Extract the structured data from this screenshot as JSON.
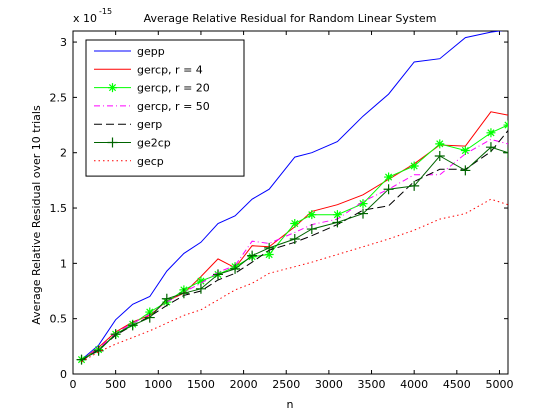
{
  "chart_data": {
    "type": "line",
    "title": "Average Relative Residual for Random Linear System",
    "xlabel": "n",
    "ylabel": "Average Relative Residual over 10 trials",
    "y_exponent_label": "x 10",
    "y_exponent_power": "-15",
    "xlim": [
      0,
      5100
    ],
    "ylim": [
      0,
      3.1
    ],
    "xticks": [
      "0",
      "500",
      "1000",
      "1500",
      "2000",
      "2500",
      "3000",
      "3500",
      "4000",
      "4500",
      "5000"
    ],
    "xtick_values": [
      0,
      500,
      1000,
      1500,
      2000,
      2500,
      3000,
      3500,
      4000,
      4500,
      5000
    ],
    "yticks": [
      "0",
      "0.5",
      "1",
      "1.5",
      "2",
      "2.5",
      "3"
    ],
    "ytick_values": [
      0,
      0.5,
      1,
      1.5,
      2,
      2.5,
      3
    ],
    "grid": false,
    "legend_position": "top-left",
    "series": [
      {
        "name": "gepp",
        "color": "#0000ff",
        "dash": "",
        "marker": "",
        "x": [
          100,
          300,
          500,
          700,
          900,
          1100,
          1300,
          1500,
          1700,
          1900,
          2100,
          2300,
          2600,
          2800,
          3100,
          3400,
          3700,
          4000,
          4300,
          4600,
          4900,
          5100
        ],
        "y": [
          0.13,
          0.26,
          0.49,
          0.63,
          0.7,
          0.93,
          1.09,
          1.19,
          1.36,
          1.43,
          1.58,
          1.67,
          1.96,
          2.0,
          2.1,
          2.33,
          2.53,
          2.82,
          2.85,
          3.04,
          3.09,
          3.11
        ]
      },
      {
        "name": "gercp, r = 4",
        "color": "#ff0000",
        "dash": "",
        "marker": "",
        "x": [
          100,
          300,
          500,
          700,
          900,
          1100,
          1300,
          1500,
          1700,
          1900,
          2100,
          2300,
          2600,
          2800,
          3100,
          3400,
          3700,
          4000,
          4300,
          4600,
          4900,
          5100
        ],
        "y": [
          0.12,
          0.24,
          0.38,
          0.47,
          0.53,
          0.66,
          0.73,
          0.88,
          1.04,
          0.96,
          1.16,
          1.15,
          1.33,
          1.47,
          1.53,
          1.62,
          1.76,
          1.9,
          2.07,
          2.06,
          2.37,
          2.34
        ]
      },
      {
        "name": "gercp, r = 20",
        "color": "#00ff00",
        "dash": "",
        "marker": "star",
        "x": [
          100,
          300,
          500,
          700,
          900,
          1100,
          1300,
          1500,
          1700,
          1900,
          2100,
          2300,
          2600,
          2800,
          3100,
          3400,
          3700,
          4000,
          4300,
          4600,
          4900,
          5100
        ],
        "y": [
          0.13,
          0.22,
          0.36,
          0.45,
          0.56,
          0.65,
          0.76,
          0.84,
          0.9,
          0.97,
          1.06,
          1.08,
          1.36,
          1.44,
          1.44,
          1.54,
          1.78,
          1.88,
          2.08,
          2.02,
          2.18,
          2.25
        ]
      },
      {
        "name": "gercp, r = 50",
        "color": "#ff00ff",
        "dash": "6,3,1,3",
        "marker": "",
        "x": [
          100,
          300,
          500,
          700,
          900,
          1100,
          1300,
          1500,
          1700,
          1900,
          2100,
          2300,
          2600,
          2800,
          3100,
          3400,
          3700,
          4000,
          4300,
          4600,
          4900,
          5100
        ],
        "y": [
          0.12,
          0.23,
          0.37,
          0.46,
          0.54,
          0.65,
          0.74,
          0.82,
          0.92,
          0.98,
          1.2,
          1.18,
          1.28,
          1.35,
          1.4,
          1.56,
          1.67,
          1.8,
          1.8,
          1.99,
          2.12,
          2.08
        ]
      },
      {
        "name": "gerp",
        "color": "#000000",
        "dash": "8,4",
        "marker": "",
        "x": [
          100,
          300,
          500,
          700,
          900,
          1100,
          1300,
          1500,
          1700,
          1900,
          2100,
          2300,
          2600,
          2800,
          3100,
          3400,
          3700,
          4000,
          4300,
          4600,
          4900,
          5100
        ],
        "y": [
          0.12,
          0.22,
          0.35,
          0.44,
          0.52,
          0.62,
          0.71,
          0.75,
          0.85,
          0.91,
          1.01,
          1.12,
          1.19,
          1.25,
          1.35,
          1.48,
          1.52,
          1.74,
          1.85,
          1.85,
          2.01,
          2.2
        ]
      },
      {
        "name": "ge2cp",
        "color": "#006400",
        "dash": "",
        "marker": "plus",
        "x": [
          100,
          300,
          500,
          700,
          900,
          1100,
          1300,
          1500,
          1700,
          1900,
          2100,
          2300,
          2600,
          2800,
          3100,
          3400,
          3700,
          4000,
          4300,
          4600,
          4900,
          5100
        ],
        "y": [
          0.13,
          0.21,
          0.36,
          0.44,
          0.51,
          0.68,
          0.73,
          0.77,
          0.9,
          0.95,
          1.07,
          1.14,
          1.22,
          1.31,
          1.37,
          1.45,
          1.67,
          1.7,
          1.97,
          1.84,
          2.05,
          2.0
        ]
      },
      {
        "name": "gecp",
        "color": "#ff0000",
        "dash": "1.5,3",
        "marker": "",
        "x": [
          100,
          300,
          500,
          700,
          900,
          1100,
          1300,
          1500,
          1700,
          1900,
          2100,
          2300,
          2600,
          2800,
          3100,
          3400,
          3700,
          4000,
          4300,
          4600,
          4900,
          5100
        ],
        "y": [
          0.11,
          0.2,
          0.27,
          0.33,
          0.39,
          0.46,
          0.53,
          0.58,
          0.67,
          0.76,
          0.82,
          0.91,
          0.97,
          1.01,
          1.08,
          1.15,
          1.22,
          1.3,
          1.4,
          1.45,
          1.58,
          1.53
        ]
      }
    ]
  }
}
